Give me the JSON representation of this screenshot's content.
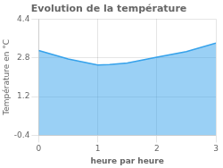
{
  "chart_data": {
    "type": "area",
    "title": "Evolution de la température",
    "xlabel": "heure par heure",
    "ylabel": "Température en °C",
    "x": [
      0,
      0.5,
      1.0,
      1.2,
      1.5,
      2.0,
      2.5,
      3.0
    ],
    "values": [
      3.1,
      2.75,
      2.5,
      2.52,
      2.58,
      2.82,
      3.05,
      3.4
    ],
    "xlim": [
      0,
      3
    ],
    "ylim": [
      -0.4,
      4.4
    ],
    "xticks": [
      0,
      1,
      2,
      3
    ],
    "yticks": [
      -0.4,
      1.2,
      2.8,
      4.4
    ],
    "grid": true
  }
}
